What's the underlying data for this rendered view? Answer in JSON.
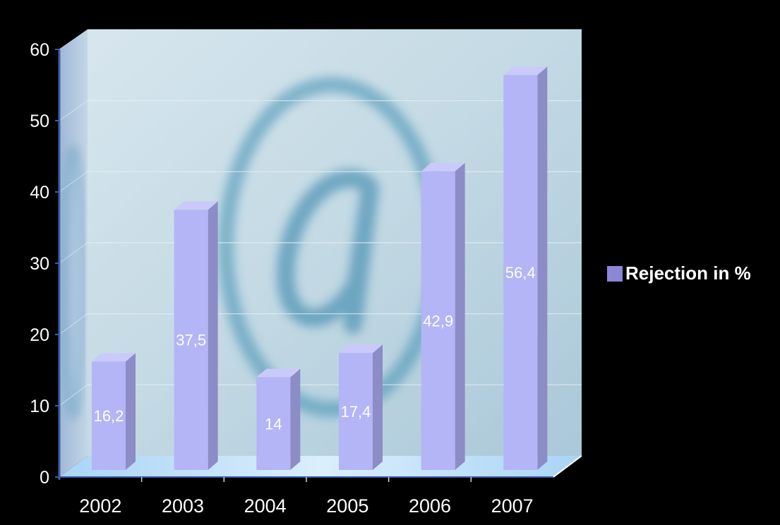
{
  "chart_data": {
    "type": "bar",
    "categories": [
      "2002",
      "2003",
      "2004",
      "2005",
      "2006",
      "2007"
    ],
    "series": [
      {
        "name": "Rejection in %",
        "values": [
          16.2,
          37.5,
          14,
          17.4,
          42.9,
          56.4
        ]
      }
    ],
    "data_labels": [
      "16,2",
      "37,5",
      "14",
      "17,4",
      "42,9",
      "56,4"
    ],
    "yticks": [
      "0",
      "10",
      "20",
      "30",
      "40",
      "50",
      "60"
    ],
    "ylim": [
      0,
      60
    ],
    "grid": true,
    "legend_position": "right",
    "colors": {
      "bar_front": "#b3b5f6",
      "bar_side": "#8c8cc6",
      "bar_top": "#c9caf9",
      "wall": "#b9d3df",
      "floor": "#bfe3fb",
      "axis": "#3b5ea8",
      "legend_swatch": "#8b86d6"
    }
  }
}
